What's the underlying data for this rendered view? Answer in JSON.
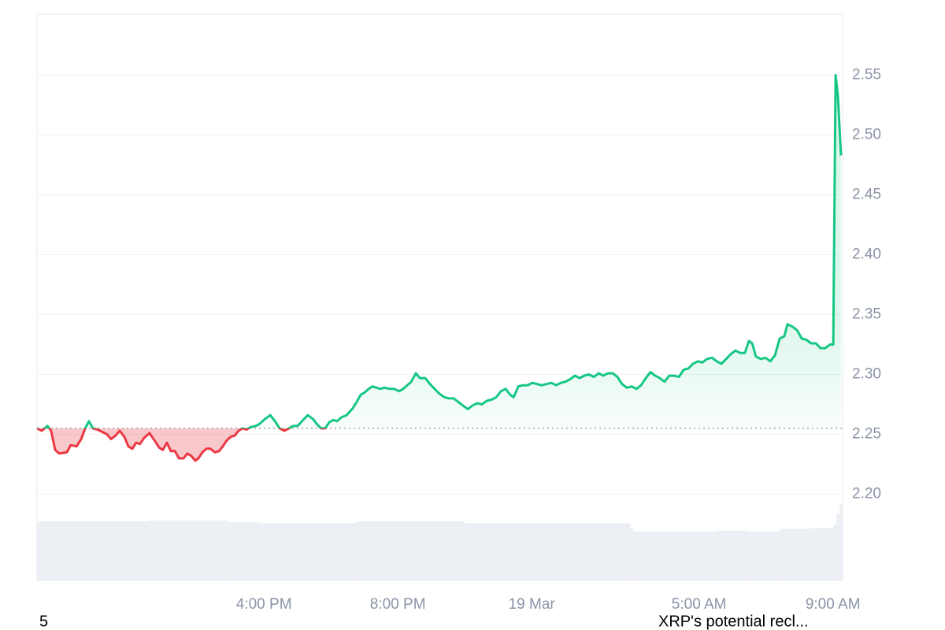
{
  "chart_data": {
    "type": "line",
    "x": [
      9.22,
      9.36,
      9.53,
      9.64,
      9.76,
      9.88,
      10.11,
      10.23,
      10.4,
      10.54,
      10.66,
      10.77,
      10.89,
      11.03,
      11.17,
      11.31,
      11.43,
      11.57,
      11.69,
      11.83,
      11.95,
      12.07,
      12.18,
      12.3,
      12.42,
      12.58,
      12.73,
      12.87,
      12.98,
      13.1,
      13.22,
      13.34,
      13.46,
      13.6,
      13.71,
      13.83,
      13.95,
      14.04,
      14.16,
      14.28,
      14.4,
      14.54,
      14.66,
      14.77,
      14.89,
      15.01,
      15.13,
      15.24,
      15.36,
      15.48,
      15.6,
      15.76,
      15.88,
      16.04,
      16.19,
      16.33,
      16.47,
      16.61,
      16.75,
      16.87,
      17.01,
      17.17,
      17.31,
      17.46,
      17.6,
      17.71,
      17.83,
      17.95,
      18.07,
      18.19,
      18.3,
      18.47,
      18.66,
      18.77,
      18.89,
      19.01,
      19.13,
      19.24,
      19.36,
      19.48,
      19.6,
      19.76,
      19.88,
      20.04,
      20.16,
      20.28,
      20.4,
      20.54,
      20.66,
      20.82,
      20.96,
      21.1,
      21.24,
      21.39,
      21.53,
      21.67,
      21.81,
      21.95,
      22.09,
      22.23,
      22.37,
      22.51,
      22.66,
      22.8,
      22.94,
      23.08,
      23.22,
      23.36,
      23.46,
      23.6,
      23.74,
      23.88,
      24.02,
      24.16,
      24.3,
      24.44,
      24.59,
      24.73,
      24.87,
      25.01,
      25.15,
      25.29,
      25.43,
      25.57,
      25.71,
      25.86,
      26.0,
      26.14,
      26.28,
      26.42,
      26.56,
      26.7,
      26.84,
      26.99,
      27.13,
      27.27,
      27.41,
      27.55,
      27.69,
      27.83,
      27.97,
      28.11,
      28.26,
      28.4,
      28.54,
      28.68,
      28.82,
      28.96,
      29.1,
      29.24,
      29.39,
      29.53,
      29.67,
      29.81,
      29.95,
      30.09,
      30.23,
      30.37,
      30.49,
      30.59,
      30.7,
      30.84,
      30.99,
      31.13,
      31.27,
      31.41,
      31.55,
      31.64,
      31.79,
      31.93,
      32.07,
      32.21,
      32.35,
      32.49,
      32.63,
      32.77,
      32.91,
      33.01,
      33.08,
      33.15,
      33.24
    ],
    "values": [
      2.255,
      2.253,
      2.257,
      2.253,
      2.237,
      2.234,
      2.235,
      2.241,
      2.24,
      2.246,
      2.255,
      2.261,
      2.255,
      2.254,
      2.252,
      2.25,
      2.246,
      2.249,
      2.253,
      2.248,
      2.24,
      2.238,
      2.243,
      2.242,
      2.247,
      2.251,
      2.245,
      2.239,
      2.237,
      2.243,
      2.236,
      2.236,
      2.23,
      2.23,
      2.234,
      2.232,
      2.228,
      2.23,
      2.235,
      2.238,
      2.238,
      2.235,
      2.236,
      2.24,
      2.245,
      2.248,
      2.249,
      2.253,
      2.255,
      2.254,
      2.256,
      2.257,
      2.259,
      2.263,
      2.266,
      2.261,
      2.255,
      2.253,
      2.255,
      2.257,
      2.257,
      2.262,
      2.266,
      2.263,
      2.258,
      2.255,
      2.255,
      2.26,
      2.262,
      2.261,
      2.264,
      2.266,
      2.272,
      2.277,
      2.283,
      2.285,
      2.288,
      2.29,
      2.289,
      2.288,
      2.289,
      2.288,
      2.288,
      2.286,
      2.288,
      2.291,
      2.294,
      2.301,
      2.297,
      2.297,
      2.292,
      2.288,
      2.284,
      2.281,
      2.28,
      2.28,
      2.277,
      2.274,
      2.271,
      2.274,
      2.276,
      2.275,
      2.278,
      2.279,
      2.281,
      2.286,
      2.288,
      2.283,
      2.281,
      2.29,
      2.291,
      2.291,
      2.293,
      2.292,
      2.291,
      2.292,
      2.293,
      2.291,
      2.293,
      2.294,
      2.296,
      2.299,
      2.297,
      2.299,
      2.3,
      2.298,
      2.301,
      2.299,
      2.301,
      2.301,
      2.298,
      2.292,
      2.289,
      2.29,
      2.288,
      2.291,
      2.297,
      2.302,
      2.299,
      2.297,
      2.294,
      2.299,
      2.299,
      2.298,
      2.304,
      2.305,
      2.309,
      2.311,
      2.31,
      2.313,
      2.314,
      2.311,
      2.309,
      2.313,
      2.317,
      2.32,
      2.318,
      2.318,
      2.328,
      2.326,
      2.315,
      2.313,
      2.314,
      2.311,
      2.316,
      2.33,
      2.332,
      2.342,
      2.34,
      2.337,
      2.33,
      2.329,
      2.326,
      2.326,
      2.322,
      2.322,
      2.325,
      2.325,
      2.55,
      2.533,
      2.483
    ],
    "baseline": 2.255,
    "up_color": "#16c784",
    "down_color": "#ea3943",
    "xlim": [
      9.22,
      33.29
    ],
    "ylim": [
      2.128,
      2.601
    ],
    "xticks": [
      {
        "value": 16,
        "label": "4:00 PM"
      },
      {
        "value": 20,
        "label": "8:00 PM"
      },
      {
        "value": 24,
        "label": "19 Mar"
      },
      {
        "value": 29,
        "label": "5:00 AM"
      },
      {
        "value": 33,
        "label": "9:00 AM"
      }
    ],
    "yticks": [
      {
        "value": 2.2,
        "label": "2.20"
      },
      2.25,
      {
        "value": 2.3,
        "label": "2.30"
      },
      2.35,
      {
        "value": 2.4,
        "label": "2.40"
      },
      2.45,
      {
        "value": 2.5,
        "label": "2.50"
      },
      2.55
    ],
    "grid": true,
    "volume": {
      "x": [
        9.22,
        12.58,
        14.93,
        15.88,
        18.7,
        18.82,
        21.29,
        21.99,
        26.94,
        27.05,
        29.53,
        30.47,
        31.41,
        32.35,
        33.01,
        33.1,
        33.2
      ],
      "values": [
        64,
        65,
        63,
        62,
        63,
        64,
        64,
        62,
        57,
        53,
        54,
        53,
        56,
        57,
        60,
        73,
        83
      ],
      "lim": [
        0,
        100
      ],
      "color": "#eceff3"
    }
  },
  "footer": {
    "left": "5",
    "right": "XRP's potential recl..."
  }
}
